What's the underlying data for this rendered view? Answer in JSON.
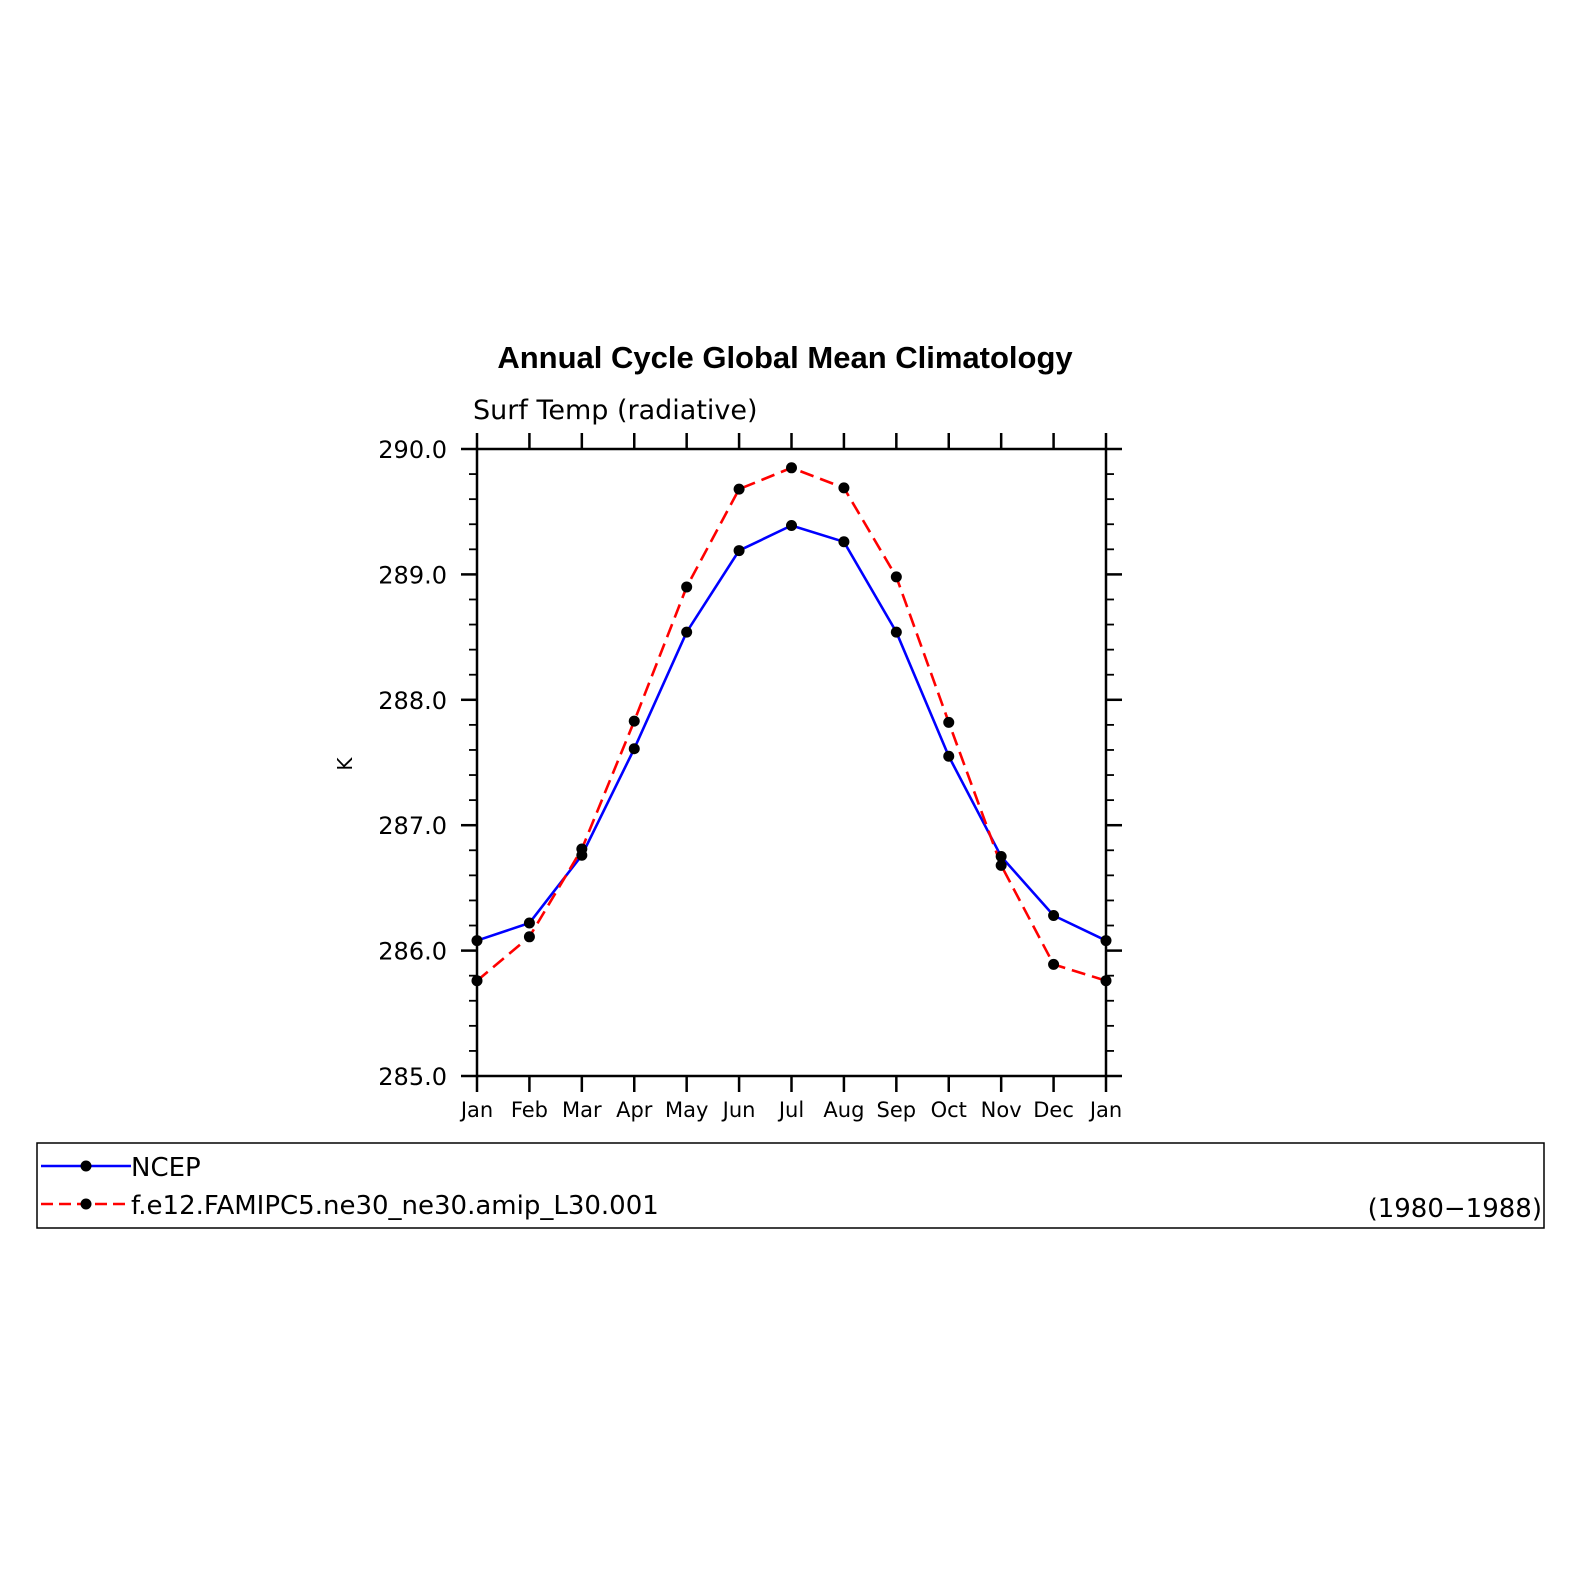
{
  "chart_data": {
    "type": "line",
    "title": "Annual Cycle Global Mean Climatology",
    "subtitle": "Surf Temp (radiative)",
    "ylabel": "K",
    "xlabel": "",
    "ylim": [
      285.0,
      290.0
    ],
    "yticks": [
      "285.0",
      "286.0",
      "287.0",
      "288.0",
      "289.0",
      "290.0"
    ],
    "yminor_step": 0.2,
    "grid": false,
    "categories": [
      "Jan",
      "Feb",
      "Mar",
      "Apr",
      "May",
      "Jun",
      "Jul",
      "Aug",
      "Sep",
      "Oct",
      "Nov",
      "Dec",
      "Jan"
    ],
    "series": [
      {
        "name": "NCEP",
        "color": "#0000ff",
        "dash": "solid",
        "values": [
          286.08,
          286.22,
          286.76,
          287.61,
          288.54,
          289.19,
          289.39,
          289.26,
          288.54,
          287.55,
          286.75,
          286.28,
          286.08
        ]
      },
      {
        "name": "f.e12.FAMIPC5.ne30_ne30.amip_L30.001",
        "color": "#ff0000",
        "dash": "dashed",
        "values": [
          285.76,
          286.11,
          286.81,
          287.83,
          288.9,
          289.68,
          289.85,
          289.69,
          288.98,
          287.82,
          286.68,
          285.89,
          285.76
        ]
      }
    ],
    "marker_color": "#000000",
    "legend": {
      "placement": "bottom",
      "period": "(1980−1988)"
    }
  }
}
